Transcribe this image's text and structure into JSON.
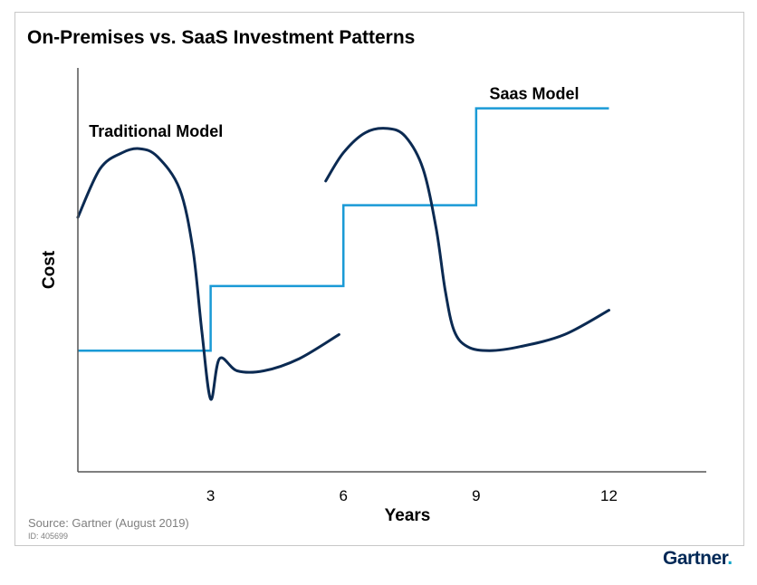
{
  "title": "On-Premises vs. SaaS Investment Patterns",
  "source": "Source: Gartner (August 2019)",
  "doc_id": "ID: 405699",
  "logo_text": "Gartner",
  "logo_dot": ".",
  "colors": {
    "traditional": "#0b2a52",
    "saas": "#1a9ad6",
    "axis": "#555555",
    "logo": "#002856"
  },
  "chart_data": {
    "type": "line",
    "title": "On-Premises vs. SaaS Investment Patterns",
    "xlabel": "Years",
    "ylabel": "Cost",
    "xlim": [
      0,
      14.2
    ],
    "ylim": [
      0,
      100
    ],
    "x_ticks": [
      3,
      6,
      9,
      12
    ],
    "grid": false,
    "annotations": [
      {
        "text": "Traditional Model",
        "x": 0.25,
        "y": 83
      },
      {
        "text": "Saas Model",
        "x": 9.3,
        "y": 90
      }
    ],
    "series": [
      {
        "name": "Traditional Model",
        "segments": [
          [
            [
              0,
              63
            ],
            [
              0.5,
              75
            ],
            [
              1.0,
              79
            ],
            [
              1.4,
              80
            ],
            [
              1.8,
              78
            ],
            [
              2.3,
              70
            ],
            [
              2.6,
              55
            ],
            [
              2.8,
              35
            ],
            [
              3.0,
              18
            ],
            [
              3.2,
              28
            ],
            [
              3.6,
              25
            ],
            [
              4.2,
              25
            ],
            [
              5.0,
              28
            ],
            [
              5.9,
              34
            ]
          ],
          [
            [
              5.6,
              72
            ],
            [
              6.0,
              79
            ],
            [
              6.5,
              84
            ],
            [
              7.0,
              85
            ],
            [
              7.4,
              83
            ],
            [
              7.8,
              75
            ],
            [
              8.1,
              60
            ],
            [
              8.3,
              45
            ],
            [
              8.5,
              35
            ],
            [
              8.8,
              31
            ],
            [
              9.3,
              30
            ],
            [
              10.0,
              31
            ],
            [
              11.0,
              34
            ],
            [
              12.0,
              40
            ]
          ]
        ]
      },
      {
        "name": "Saas Model",
        "step": [
          [
            0,
            30
          ],
          [
            3.0,
            30
          ],
          [
            3.0,
            46
          ],
          [
            6.0,
            46
          ],
          [
            6.0,
            66
          ],
          [
            9.0,
            66
          ],
          [
            9.0,
            90
          ],
          [
            12.0,
            90
          ]
        ]
      }
    ]
  }
}
